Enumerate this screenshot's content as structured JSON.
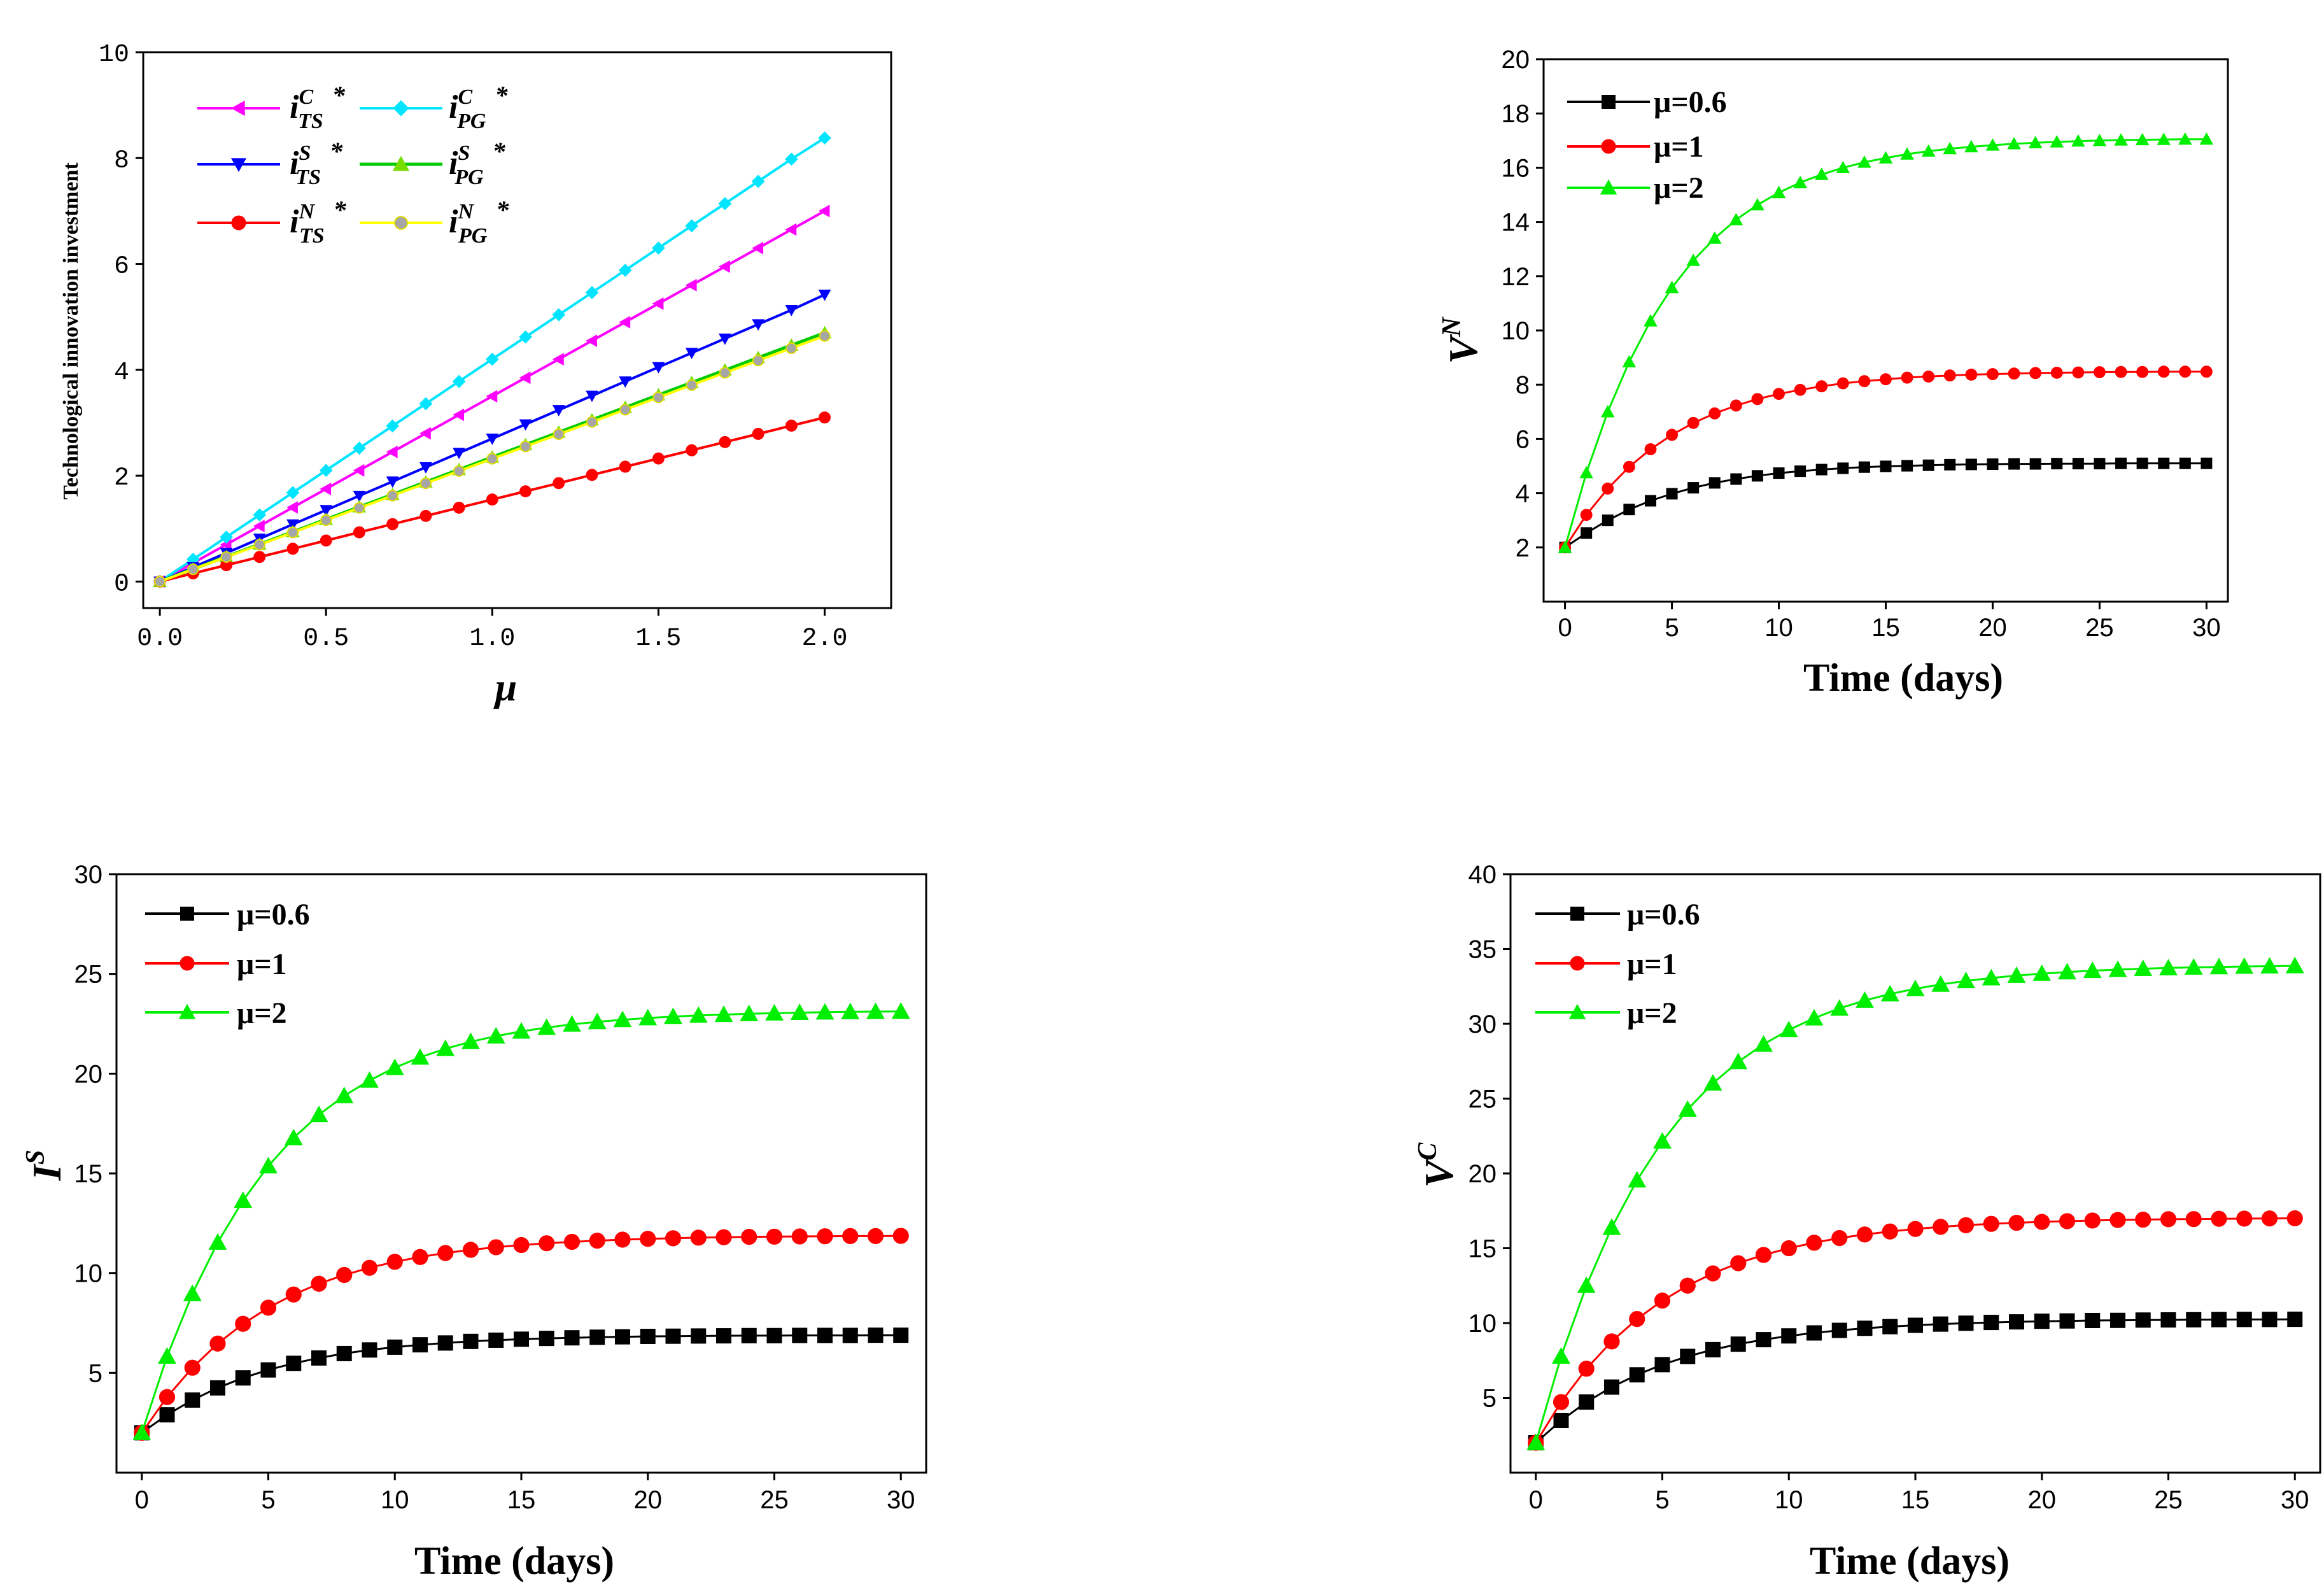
{
  "chart_data": [
    {
      "id": "a",
      "type": "line",
      "title": "",
      "xlabel": "μ",
      "ylabel": "Technological innovation investment",
      "xlim": [
        -0.05,
        2.2
      ],
      "ylim": [
        -0.5,
        10
      ],
      "xticks": [
        "0.0",
        "0.5",
        "1.0",
        "1.5",
        "2.0"
      ],
      "yticks": [
        "0",
        "2",
        "4",
        "6",
        "8",
        "10"
      ],
      "x": [
        0.0,
        0.1,
        0.2,
        0.3,
        0.4,
        0.5,
        0.6,
        0.7,
        0.8,
        0.9,
        1.0,
        1.1,
        1.2,
        1.3,
        1.4,
        1.5,
        1.6,
        1.7,
        1.8,
        1.9,
        2.0
      ],
      "legend_columns": 2,
      "series": [
        {
          "name": "i_TS^C *",
          "base": "i",
          "sup": "C",
          "sub": "TS",
          "color": "#ff00ff",
          "marker": "triangle-left",
          "values": [
            0.0,
            0.35,
            0.7,
            1.05,
            1.4,
            1.75,
            2.1,
            2.45,
            2.8,
            3.15,
            3.5,
            3.85,
            4.2,
            4.55,
            4.9,
            5.25,
            5.6,
            5.95,
            6.3,
            6.65,
            7.0
          ]
        },
        {
          "name": "i_PG^C *",
          "base": "i",
          "sup": "C",
          "sub": "PG",
          "color": "#00e5ff",
          "marker": "diamond",
          "values": [
            0.0,
            0.42,
            0.84,
            1.26,
            1.68,
            2.1,
            2.52,
            2.94,
            3.36,
            3.78,
            4.2,
            4.62,
            5.04,
            5.46,
            5.88,
            6.3,
            6.72,
            7.14,
            7.56,
            7.98,
            8.38
          ]
        },
        {
          "name": "i_TS^S *",
          "base": "i",
          "sup": "S",
          "sub": "TS",
          "color": "#0000ff",
          "marker": "triangle-down",
          "values": [
            0.0,
            0.27,
            0.54,
            0.81,
            1.08,
            1.35,
            1.62,
            1.89,
            2.16,
            2.43,
            2.7,
            2.97,
            3.24,
            3.51,
            3.78,
            4.05,
            4.32,
            4.59,
            4.86,
            5.13,
            5.42
          ]
        },
        {
          "name": "i_PG^S *",
          "base": "i",
          "sup": "S",
          "sub": "PG",
          "color": "#00cc00",
          "marker": "triangle-up",
          "values": [
            0.0,
            0.235,
            0.47,
            0.705,
            0.94,
            1.175,
            1.41,
            1.645,
            1.88,
            2.115,
            2.35,
            2.585,
            2.82,
            3.055,
            3.29,
            3.525,
            3.76,
            3.995,
            4.23,
            4.465,
            4.7
          ]
        },
        {
          "name": "i_TS^N *",
          "base": "i",
          "sup": "N",
          "sub": "TS",
          "color": "#ff0000",
          "marker": "circle",
          "values": [
            0.0,
            0.155,
            0.31,
            0.465,
            0.62,
            0.775,
            0.93,
            1.085,
            1.24,
            1.395,
            1.55,
            1.705,
            1.86,
            2.015,
            2.17,
            2.325,
            2.48,
            2.635,
            2.79,
            2.945,
            3.1
          ]
        },
        {
          "name": "i_PG^N *",
          "base": "i",
          "sup": "N",
          "sub": "PG",
          "color": "#ffff00",
          "marker": "circle-gray",
          "values": [
            0.0,
            0.232,
            0.464,
            0.696,
            0.928,
            1.16,
            1.392,
            1.624,
            1.856,
            2.088,
            2.32,
            2.552,
            2.784,
            3.016,
            3.248,
            3.48,
            3.712,
            3.944,
            4.176,
            4.408,
            4.64
          ]
        }
      ]
    },
    {
      "id": "b",
      "type": "line",
      "title": "",
      "xlabel": "Time (days)",
      "ylabel": "V",
      "ylabel_sup": "N",
      "xlim": [
        -1,
        31
      ],
      "ylim": [
        0,
        20
      ],
      "xticks": [
        "0",
        "5",
        "10",
        "15",
        "20",
        "25",
        "30"
      ],
      "yticks": [
        "2",
        "4",
        "6",
        "8",
        "10",
        "12",
        "14",
        "16",
        "18",
        "20"
      ],
      "x": [
        0,
        1,
        2,
        3,
        4,
        5,
        6,
        7,
        8,
        9,
        10,
        11,
        12,
        13,
        14,
        15,
        16,
        17,
        18,
        19,
        20,
        21,
        22,
        23,
        24,
        25,
        26,
        27,
        28,
        29,
        30
      ],
      "series": [
        {
          "name": "μ=0.6",
          "color": "#000000",
          "marker": "square",
          "values": [
            2.0,
            2.53,
            3.0,
            3.4,
            3.72,
            3.98,
            4.2,
            4.38,
            4.52,
            4.64,
            4.74,
            4.81,
            4.87,
            4.92,
            4.96,
            4.99,
            5.01,
            5.03,
            5.05,
            5.06,
            5.07,
            5.08,
            5.08,
            5.09,
            5.09,
            5.09,
            5.1,
            5.1,
            5.1,
            5.1,
            5.1
          ]
        },
        {
          "name": "μ=1",
          "color": "#ff0000",
          "marker": "circle",
          "values": [
            2.0,
            3.2,
            4.17,
            4.97,
            5.62,
            6.15,
            6.59,
            6.94,
            7.23,
            7.47,
            7.66,
            7.81,
            7.94,
            8.05,
            8.13,
            8.2,
            8.26,
            8.3,
            8.34,
            8.37,
            8.39,
            8.41,
            8.43,
            8.44,
            8.45,
            8.46,
            8.47,
            8.47,
            8.48,
            8.48,
            8.48
          ]
        },
        {
          "name": "μ=2",
          "color": "#00ee00",
          "marker": "triangle-up",
          "values": [
            2.0,
            4.75,
            7.0,
            8.84,
            10.35,
            11.58,
            12.58,
            13.4,
            14.08,
            14.63,
            15.08,
            15.45,
            15.75,
            16.0,
            16.2,
            16.36,
            16.5,
            16.61,
            16.7,
            16.77,
            16.83,
            16.88,
            16.92,
            16.95,
            16.98,
            17.0,
            17.02,
            17.03,
            17.04,
            17.05,
            17.05
          ]
        }
      ]
    },
    {
      "id": "c",
      "type": "line",
      "title": "",
      "xlabel": "Time (days)",
      "ylabel": "I",
      "ylabel_sup": "S",
      "xlim": [
        -1,
        31
      ],
      "ylim": [
        0,
        30
      ],
      "xticks": [
        "0",
        "5",
        "10",
        "15",
        "20",
        "25",
        "30"
      ],
      "yticks": [
        "5",
        "10",
        "15",
        "20",
        "25",
        "30"
      ],
      "x": [
        0,
        1,
        2,
        3,
        4,
        5,
        6,
        7,
        8,
        9,
        10,
        11,
        12,
        13,
        14,
        15,
        16,
        17,
        18,
        19,
        20,
        21,
        22,
        23,
        24,
        25,
        26,
        27,
        28,
        29,
        30
      ],
      "series": [
        {
          "name": "μ=0.6",
          "color": "#000000",
          "marker": "square",
          "values": [
            2.0,
            2.9,
            3.64,
            4.25,
            4.75,
            5.15,
            5.48,
            5.75,
            5.97,
            6.15,
            6.29,
            6.41,
            6.5,
            6.58,
            6.64,
            6.69,
            6.73,
            6.76,
            6.79,
            6.81,
            6.83,
            6.84,
            6.85,
            6.86,
            6.87,
            6.87,
            6.88,
            6.88,
            6.88,
            6.89,
            6.89
          ]
        },
        {
          "name": "μ=1",
          "color": "#ff0000",
          "marker": "circle",
          "values": [
            2.0,
            3.79,
            5.26,
            6.47,
            7.46,
            8.27,
            8.93,
            9.47,
            9.91,
            10.27,
            10.57,
            10.81,
            11.01,
            11.17,
            11.3,
            11.41,
            11.5,
            11.57,
            11.63,
            11.68,
            11.72,
            11.75,
            11.78,
            11.8,
            11.82,
            11.83,
            11.84,
            11.85,
            11.86,
            11.86,
            11.87
          ]
        },
        {
          "name": "μ=2",
          "color": "#00ee00",
          "marker": "triangle-up",
          "values": [
            2.0,
            5.83,
            8.97,
            11.54,
            13.64,
            15.37,
            16.78,
            17.94,
            18.89,
            19.66,
            20.3,
            20.82,
            21.25,
            21.6,
            21.88,
            22.12,
            22.31,
            22.47,
            22.6,
            22.7,
            22.79,
            22.86,
            22.92,
            22.96,
            23.0,
            23.03,
            23.06,
            23.08,
            23.1,
            23.11,
            23.12
          ]
        }
      ]
    },
    {
      "id": "d",
      "type": "line",
      "title": "",
      "xlabel": "Time (days)",
      "ylabel": "V",
      "ylabel_sup": "C",
      "xlim": [
        -1,
        31
      ],
      "ylim": [
        0,
        40
      ],
      "xticks": [
        "0",
        "5",
        "10",
        "15",
        "20",
        "25",
        "30"
      ],
      "yticks": [
        "5",
        "10",
        "15",
        "20",
        "25",
        "30",
        "35",
        "40"
      ],
      "x": [
        0,
        1,
        2,
        3,
        4,
        5,
        6,
        7,
        8,
        9,
        10,
        11,
        12,
        13,
        14,
        15,
        16,
        17,
        18,
        19,
        20,
        21,
        22,
        23,
        24,
        25,
        26,
        27,
        28,
        29,
        30
      ],
      "series": [
        {
          "name": "μ=0.6",
          "color": "#000000",
          "marker": "square",
          "values": [
            2.0,
            3.49,
            4.72,
            5.72,
            6.54,
            7.22,
            7.77,
            8.22,
            8.59,
            8.89,
            9.14,
            9.34,
            9.51,
            9.65,
            9.76,
            9.85,
            9.93,
            9.99,
            10.04,
            10.08,
            10.12,
            10.14,
            10.17,
            10.18,
            10.2,
            10.21,
            10.22,
            10.23,
            10.24,
            10.24,
            10.25
          ]
        },
        {
          "name": "μ=1",
          "color": "#ff0000",
          "marker": "circle",
          "values": [
            2.0,
            4.72,
            6.95,
            8.77,
            10.27,
            11.5,
            12.5,
            13.32,
            14.0,
            14.55,
            15.0,
            15.37,
            15.68,
            15.92,
            16.12,
            16.29,
            16.43,
            16.54,
            16.63,
            16.7,
            16.76,
            16.81,
            16.85,
            16.89,
            16.91,
            16.94,
            16.95,
            16.97,
            16.98,
            16.99,
            17.0
          ]
        },
        {
          "name": "μ=2",
          "color": "#00ee00",
          "marker": "triangle-up",
          "values": [
            2.0,
            7.77,
            12.5,
            16.38,
            19.55,
            22.15,
            24.28,
            26.03,
            27.46,
            28.63,
            29.59,
            30.38,
            31.03,
            31.56,
            31.99,
            32.34,
            32.63,
            32.87,
            33.06,
            33.22,
            33.35,
            33.46,
            33.55,
            33.62,
            33.68,
            33.73,
            33.77,
            33.8,
            33.83,
            33.85,
            33.87
          ]
        }
      ]
    }
  ]
}
